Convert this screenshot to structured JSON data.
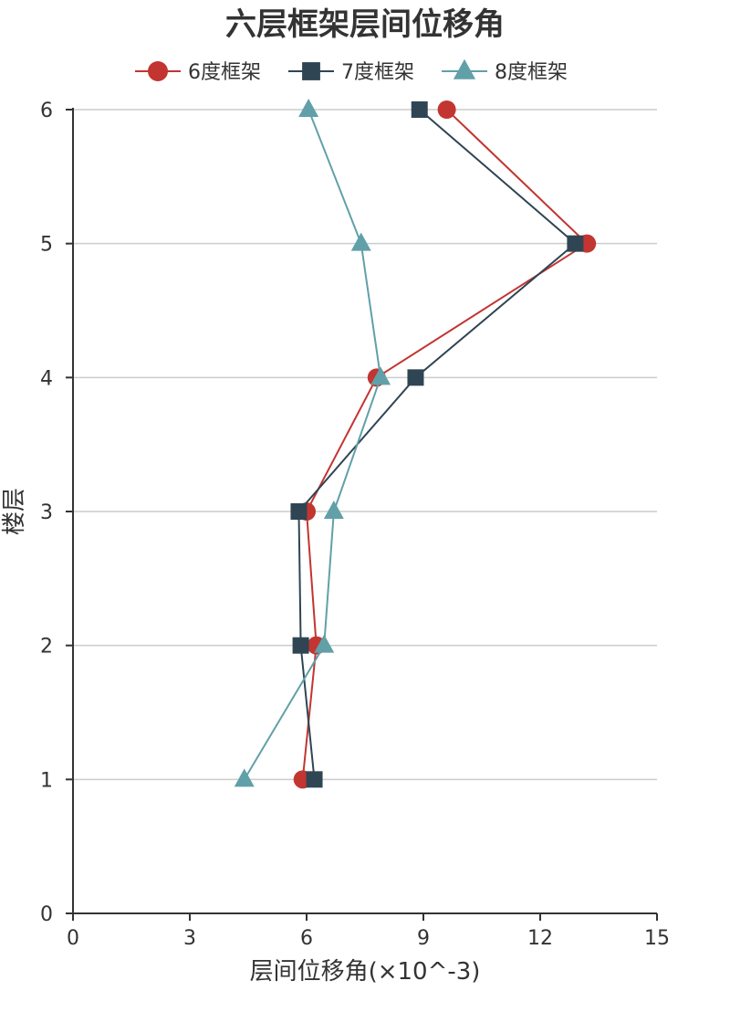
{
  "chart_data": {
    "type": "line",
    "title": "六层框架层间位移角",
    "xlabel": "层间位移角(×10^-3)",
    "ylabel": "楼层",
    "xlim": [
      0,
      15
    ],
    "ylim": [
      0,
      6
    ],
    "xticks": [
      0,
      3,
      6,
      9,
      12,
      15
    ],
    "yticks": [
      0,
      1,
      2,
      3,
      4,
      5,
      6
    ],
    "x_tick_labels": [
      "0",
      "3",
      "6",
      "9",
      "12",
      "15"
    ],
    "y_tick_labels": [
      "0",
      "1",
      "2",
      "3",
      "4",
      "5",
      "6"
    ],
    "grid": "horizontal",
    "legend_position": "top-center",
    "series": [
      {
        "name": "6度框架",
        "color": "#c23531",
        "marker": "circle",
        "points": [
          [
            5.9,
            1
          ],
          [
            6.25,
            2
          ],
          [
            6.0,
            3
          ],
          [
            7.8,
            4
          ],
          [
            13.2,
            5
          ],
          [
            9.6,
            6
          ]
        ]
      },
      {
        "name": "7度框架",
        "color": "#2f4554",
        "marker": "square",
        "points": [
          [
            6.2,
            1
          ],
          [
            5.85,
            2
          ],
          [
            5.8,
            3
          ],
          [
            8.8,
            4
          ],
          [
            12.9,
            5
          ],
          [
            8.9,
            6
          ]
        ]
      },
      {
        "name": "8度框架",
        "color": "#61a0a8",
        "marker": "triangle",
        "points": [
          [
            4.4,
            1
          ],
          [
            6.45,
            2
          ],
          [
            6.7,
            3
          ],
          [
            7.9,
            4
          ],
          [
            7.4,
            5
          ],
          [
            6.05,
            6
          ]
        ]
      }
    ]
  }
}
